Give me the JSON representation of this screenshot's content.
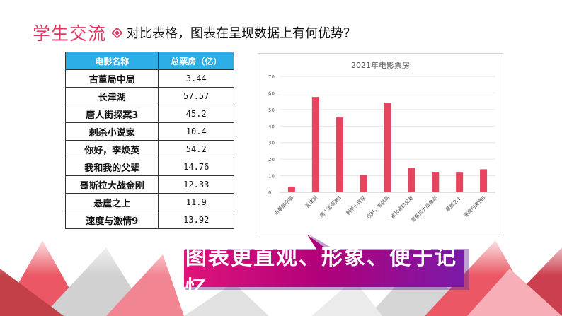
{
  "header": {
    "title": "学生交流",
    "question": "对比表格，图表在呈现数据上有何优势？"
  },
  "table": {
    "headers": [
      "电影名称",
      "总票房（亿）"
    ],
    "rows": [
      [
        "古董局中局",
        "3.44"
      ],
      [
        "长津湖",
        "57.57"
      ],
      [
        "唐人街探案3",
        "45.2"
      ],
      [
        "刺杀小说家",
        "10.4"
      ],
      [
        "你好，李焕英",
        "54.2"
      ],
      [
        "我和我的父辈",
        "14.76"
      ],
      [
        "哥斯拉大战金刚",
        "12.33"
      ],
      [
        "悬崖之上",
        "11.9"
      ],
      [
        "速度与激情9",
        "13.92"
      ]
    ]
  },
  "chart_data": {
    "type": "bar",
    "title": "2021年电影票房",
    "categories": [
      "古董局中局",
      "长津湖",
      "唐人街探案3",
      "刺杀小说家",
      "你好，李焕英",
      "我和我的父辈",
      "哥斯拉大战金刚",
      "悬崖之上",
      "速度与激情9"
    ],
    "values": [
      3.44,
      57.57,
      45.2,
      10.4,
      54.2,
      14.76,
      12.33,
      11.9,
      13.92
    ],
    "yticks": [
      "0",
      "10",
      "20",
      "30",
      "40",
      "50",
      "60",
      "70"
    ],
    "ylim": [
      0,
      70
    ],
    "grid": true,
    "legend": "none",
    "bar_color": "#e8445f"
  },
  "callout": {
    "text": "图表更直观、形象、便于记忆"
  },
  "colors": {
    "accent": "#e23a63",
    "table_header": "#2eaee7",
    "banner": "#b0007a"
  }
}
